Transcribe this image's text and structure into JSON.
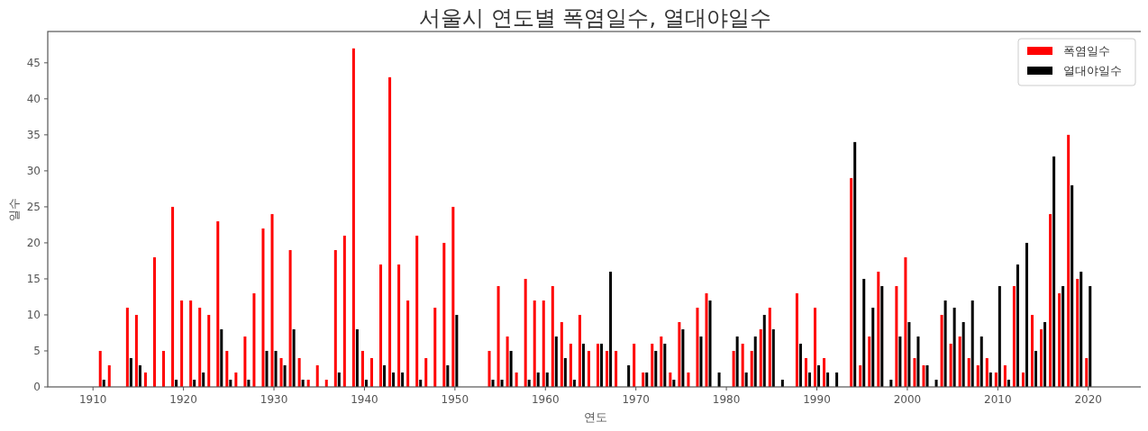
{
  "chart_data": {
    "type": "bar",
    "title": "서울시 연도별 폭염일수, 열대야일수",
    "xlabel": "연도",
    "ylabel": "일수",
    "x": [
      1911,
      1912,
      1913,
      1914,
      1915,
      1916,
      1917,
      1918,
      1919,
      1920,
      1921,
      1922,
      1923,
      1924,
      1925,
      1926,
      1927,
      1928,
      1929,
      1930,
      1931,
      1932,
      1933,
      1934,
      1935,
      1936,
      1937,
      1938,
      1939,
      1940,
      1941,
      1942,
      1943,
      1944,
      1945,
      1946,
      1947,
      1948,
      1949,
      1950,
      1954,
      1955,
      1956,
      1957,
      1958,
      1959,
      1960,
      1961,
      1962,
      1963,
      1964,
      1965,
      1966,
      1967,
      1968,
      1969,
      1970,
      1971,
      1972,
      1973,
      1974,
      1975,
      1976,
      1977,
      1978,
      1979,
      1980,
      1981,
      1982,
      1983,
      1984,
      1985,
      1986,
      1987,
      1988,
      1989,
      1990,
      1991,
      1992,
      1993,
      1994,
      1995,
      1996,
      1997,
      1998,
      1999,
      2000,
      2001,
      2002,
      2003,
      2004,
      2005,
      2006,
      2007,
      2008,
      2009,
      2010,
      2011,
      2012,
      2013,
      2014,
      2015,
      2016,
      2017,
      2018,
      2019,
      2020
    ],
    "series": [
      {
        "name": "폭염일수",
        "color": "#ff0000",
        "values": [
          5,
          3,
          0,
          11,
          10,
          2,
          18,
          5,
          25,
          12,
          12,
          11,
          10,
          23,
          5,
          2,
          7,
          13,
          22,
          24,
          4,
          19,
          4,
          1,
          3,
          1,
          19,
          21,
          47,
          5,
          4,
          17,
          43,
          17,
          12,
          21,
          4,
          11,
          20,
          25,
          5,
          14,
          7,
          2,
          15,
          12,
          12,
          14,
          9,
          6,
          10,
          5,
          6,
          5,
          5,
          0,
          6,
          2,
          6,
          7,
          2,
          9,
          2,
          11,
          13,
          0,
          0,
          5,
          6,
          5,
          8,
          11,
          0,
          0,
          13,
          4,
          11,
          4,
          0,
          0,
          29,
          3,
          7,
          16,
          0,
          14,
          18,
          4,
          3,
          0,
          10,
          6,
          7,
          4,
          3,
          4,
          2,
          3,
          14,
          2,
          10,
          8,
          24,
          13,
          35,
          15,
          4
        ]
      },
      {
        "name": "열대야일수",
        "color": "#000000",
        "values": [
          1,
          0,
          0,
          4,
          3,
          0,
          0,
          0,
          1,
          0,
          1,
          2,
          0,
          8,
          1,
          0,
          1,
          0,
          5,
          5,
          3,
          8,
          1,
          0,
          0,
          0,
          2,
          0,
          8,
          1,
          0,
          3,
          2,
          2,
          0,
          1,
          0,
          0,
          3,
          10,
          1,
          1,
          5,
          0,
          1,
          2,
          2,
          7,
          4,
          1,
          6,
          0,
          6,
          16,
          0,
          3,
          0,
          2,
          5,
          6,
          1,
          8,
          0,
          7,
          12,
          2,
          0,
          7,
          2,
          7,
          10,
          8,
          1,
          0,
          6,
          2,
          3,
          2,
          2,
          0,
          34,
          15,
          11,
          14,
          1,
          7,
          9,
          7,
          3,
          1,
          12,
          11,
          9,
          12,
          7,
          2,
          14,
          1,
          17,
          20,
          5,
          9,
          32,
          14,
          28,
          16,
          14
        ]
      }
    ],
    "xlim": [
      1905,
      2026
    ],
    "ylim": [
      0,
      49.35
    ],
    "xticks": [
      1910,
      1920,
      1930,
      1940,
      1950,
      1960,
      1970,
      1980,
      1990,
      2000,
      2010,
      2020
    ],
    "yticks": [
      0,
      5,
      10,
      15,
      20,
      25,
      30,
      35,
      40,
      45
    ],
    "grid": false,
    "legend": "top right"
  }
}
